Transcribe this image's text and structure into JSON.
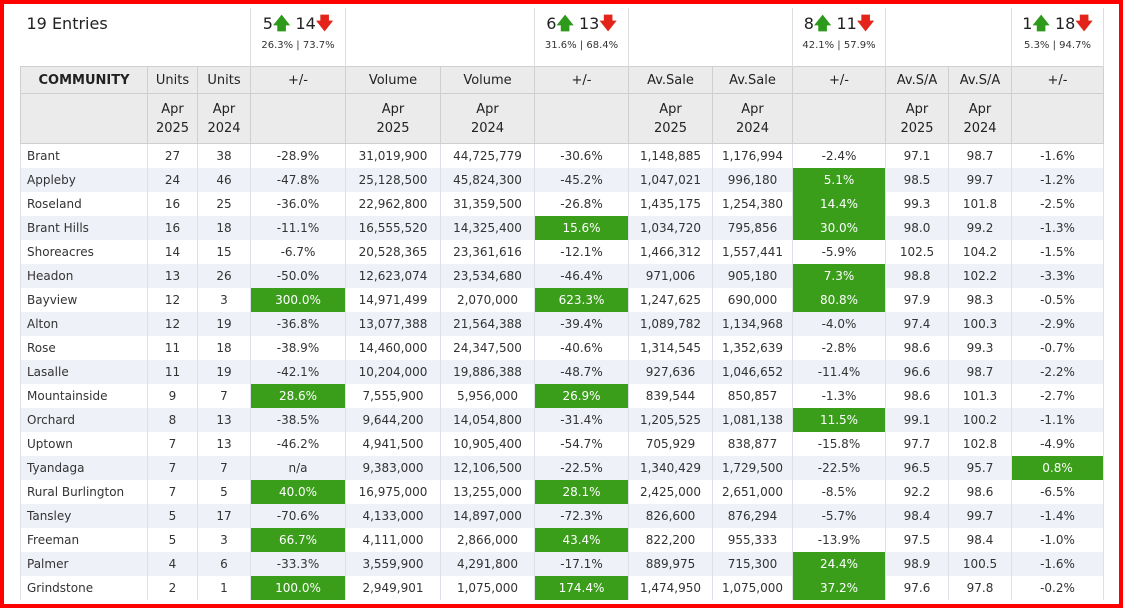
{
  "entries_label": "19 Entries",
  "highlight_color": "#3a9e1a",
  "summaries": [
    {
      "up": "5",
      "down": "14",
      "up_pct": "26.3%",
      "down_pct": "73.7%"
    },
    {
      "up": "6",
      "down": "13",
      "up_pct": "31.6%",
      "down_pct": "68.4%"
    },
    {
      "up": "8",
      "down": "11",
      "up_pct": "42.1%",
      "down_pct": "57.9%"
    },
    {
      "up": "1",
      "down": "18",
      "up_pct": "5.3%",
      "down_pct": "94.7%"
    }
  ],
  "icons": {
    "up": "arrow-up-icon",
    "down": "arrow-down-icon"
  },
  "headers": [
    "COMMUNITY",
    "Units",
    "Units",
    "+/-",
    "Volume",
    "Volume",
    "+/-",
    "Av.Sale",
    "Av.Sale",
    "+/-",
    "Av.S/A",
    "Av.S/A",
    "+/-"
  ],
  "subheaders": [
    "",
    "Apr 2025",
    "Apr 2024",
    "",
    "Apr 2025",
    "Apr 2024",
    "",
    "Apr 2025",
    "Apr 2024",
    "",
    "Apr 2025",
    "Apr 2024",
    ""
  ],
  "rows": [
    [
      "Brant",
      "27",
      "38",
      "-28.9%",
      "31,019,900",
      "44,725,779",
      "-30.6%",
      "1,148,885",
      "1,176,994",
      "-2.4%",
      "97.1",
      "98.7",
      "-1.6%"
    ],
    [
      "Appleby",
      "24",
      "46",
      "-47.8%",
      "25,128,500",
      "45,824,300",
      "-45.2%",
      "1,047,021",
      "996,180",
      "5.1%",
      "98.5",
      "99.7",
      "-1.2%"
    ],
    [
      "Roseland",
      "16",
      "25",
      "-36.0%",
      "22,962,800",
      "31,359,500",
      "-26.8%",
      "1,435,175",
      "1,254,380",
      "14.4%",
      "99.3",
      "101.8",
      "-2.5%"
    ],
    [
      "Brant Hills",
      "16",
      "18",
      "-11.1%",
      "16,555,520",
      "14,325,400",
      "15.6%",
      "1,034,720",
      "795,856",
      "30.0%",
      "98.0",
      "99.2",
      "-1.3%"
    ],
    [
      "Shoreacres",
      "14",
      "15",
      "-6.7%",
      "20,528,365",
      "23,361,616",
      "-12.1%",
      "1,466,312",
      "1,557,441",
      "-5.9%",
      "102.5",
      "104.2",
      "-1.5%"
    ],
    [
      "Headon",
      "13",
      "26",
      "-50.0%",
      "12,623,074",
      "23,534,680",
      "-46.4%",
      "971,006",
      "905,180",
      "7.3%",
      "98.8",
      "102.2",
      "-3.3%"
    ],
    [
      "Bayview",
      "12",
      "3",
      "300.0%",
      "14,971,499",
      "2,070,000",
      "623.3%",
      "1,247,625",
      "690,000",
      "80.8%",
      "97.9",
      "98.3",
      "-0.5%"
    ],
    [
      "Alton",
      "12",
      "19",
      "-36.8%",
      "13,077,388",
      "21,564,388",
      "-39.4%",
      "1,089,782",
      "1,134,968",
      "-4.0%",
      "97.4",
      "100.3",
      "-2.9%"
    ],
    [
      "Rose",
      "11",
      "18",
      "-38.9%",
      "14,460,000",
      "24,347,500",
      "-40.6%",
      "1,314,545",
      "1,352,639",
      "-2.8%",
      "98.6",
      "99.3",
      "-0.7%"
    ],
    [
      "Lasalle",
      "11",
      "19",
      "-42.1%",
      "10,204,000",
      "19,886,388",
      "-48.7%",
      "927,636",
      "1,046,652",
      "-11.4%",
      "96.6",
      "98.7",
      "-2.2%"
    ],
    [
      "Mountainside",
      "9",
      "7",
      "28.6%",
      "7,555,900",
      "5,956,000",
      "26.9%",
      "839,544",
      "850,857",
      "-1.3%",
      "98.6",
      "101.3",
      "-2.7%"
    ],
    [
      "Orchard",
      "8",
      "13",
      "-38.5%",
      "9,644,200",
      "14,054,800",
      "-31.4%",
      "1,205,525",
      "1,081,138",
      "11.5%",
      "99.1",
      "100.2",
      "-1.1%"
    ],
    [
      "Uptown",
      "7",
      "13",
      "-46.2%",
      "4,941,500",
      "10,905,400",
      "-54.7%",
      "705,929",
      "838,877",
      "-15.8%",
      "97.7",
      "102.8",
      "-4.9%"
    ],
    [
      "Tyandaga",
      "7",
      "7",
      "n/a",
      "9,383,000",
      "12,106,500",
      "-22.5%",
      "1,340,429",
      "1,729,500",
      "-22.5%",
      "96.5",
      "95.7",
      "0.8%"
    ],
    [
      "Rural Burlington",
      "7",
      "5",
      "40.0%",
      "16,975,000",
      "13,255,000",
      "28.1%",
      "2,425,000",
      "2,651,000",
      "-8.5%",
      "92.2",
      "98.6",
      "-6.5%"
    ],
    [
      "Tansley",
      "5",
      "17",
      "-70.6%",
      "4,133,000",
      "14,897,000",
      "-72.3%",
      "826,600",
      "876,294",
      "-5.7%",
      "98.4",
      "99.7",
      "-1.4%"
    ],
    [
      "Freeman",
      "5",
      "3",
      "66.7%",
      "4,111,000",
      "2,866,000",
      "43.4%",
      "822,200",
      "955,333",
      "-13.9%",
      "97.5",
      "98.4",
      "-1.0%"
    ],
    [
      "Palmer",
      "4",
      "6",
      "-33.3%",
      "3,559,900",
      "4,291,800",
      "-17.1%",
      "889,975",
      "715,300",
      "24.4%",
      "98.9",
      "100.5",
      "-1.6%"
    ],
    [
      "Grindstone",
      "2",
      "1",
      "100.0%",
      "2,949,901",
      "1,075,000",
      "174.4%",
      "1,474,950",
      "1,075,000",
      "37.2%",
      "97.6",
      "97.8",
      "-0.2%"
    ]
  ]
}
